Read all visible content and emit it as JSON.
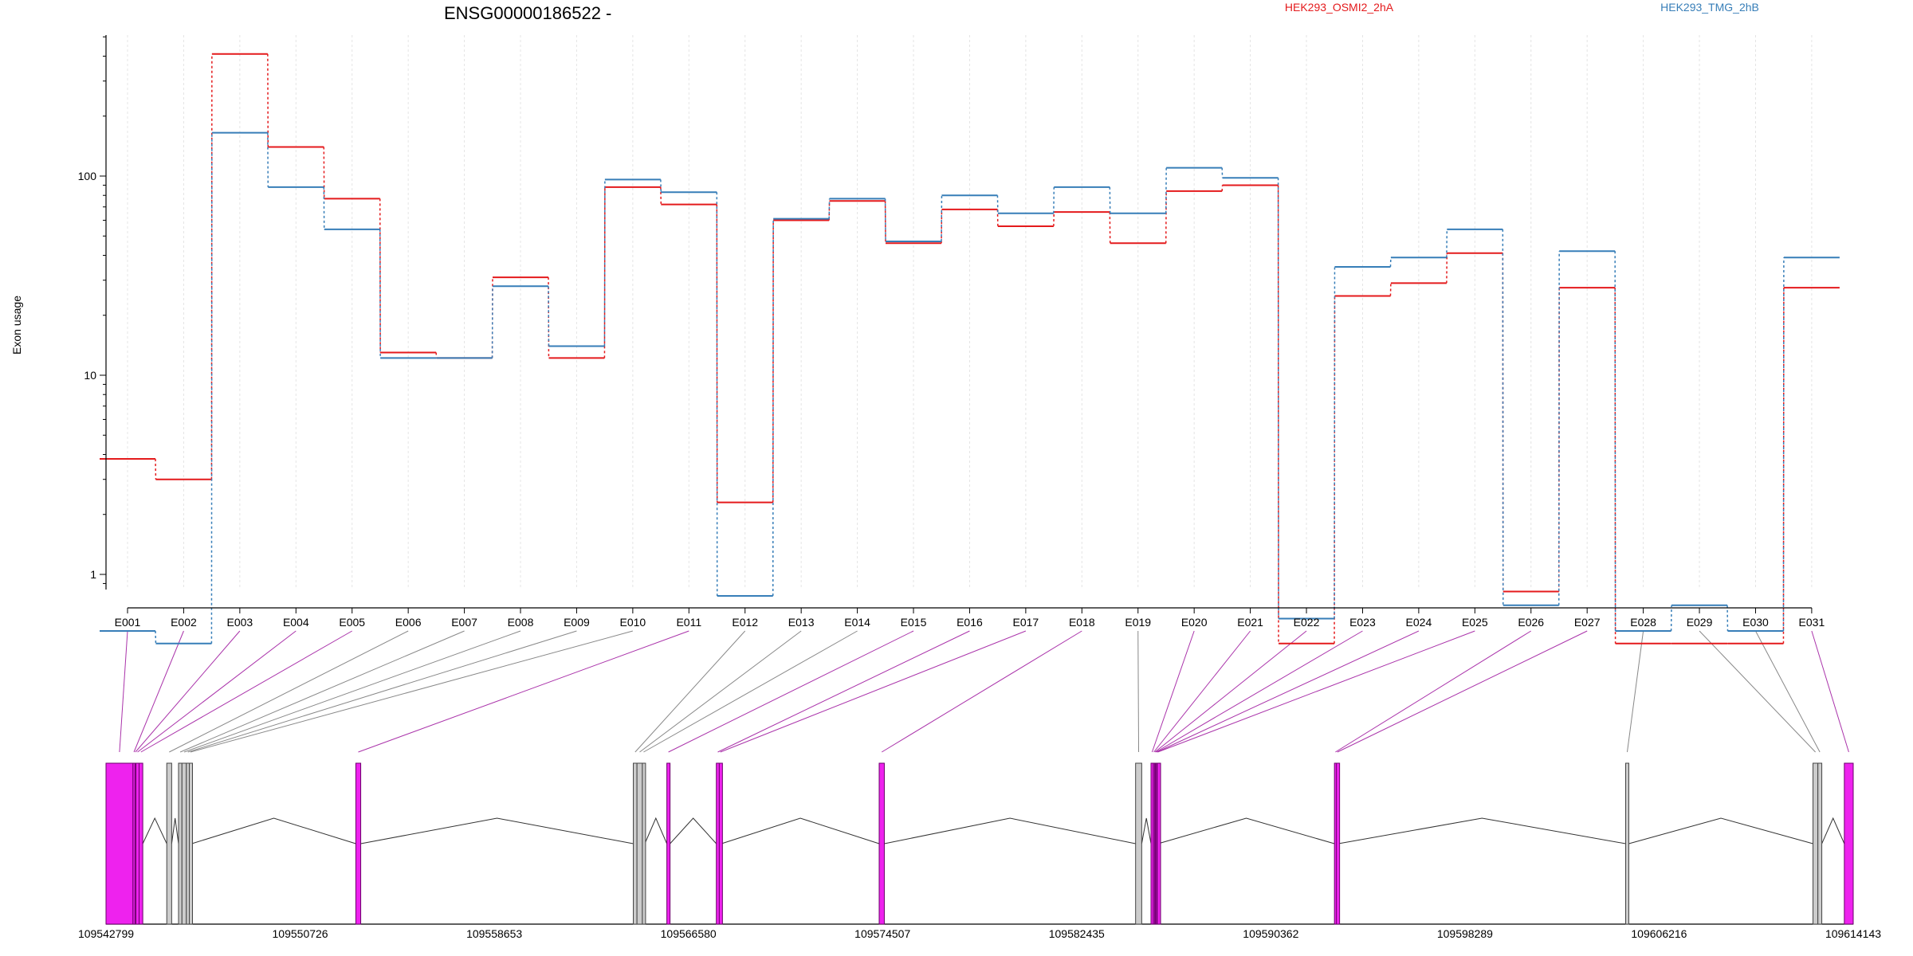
{
  "chart_data": {
    "type": "line",
    "title": "ENSG00000186522 -",
    "ylabel": "Exon usage",
    "xlabel": "",
    "yscale": "log",
    "ylim": [
      0.4,
      520
    ],
    "yticks": [
      1,
      10,
      100
    ],
    "ytick_labels": [
      "1",
      "10",
      "100"
    ],
    "grid": "vertical dotted",
    "legend_placement": "top-right",
    "categories": [
      "E001",
      "E002",
      "E003",
      "E004",
      "E005",
      "E006",
      "E007",
      "E008",
      "E009",
      "E010",
      "E011",
      "E012",
      "E013",
      "E014",
      "E015",
      "E016",
      "E017",
      "E018",
      "E019",
      "E020",
      "E021",
      "E022",
      "E023",
      "E024",
      "E025",
      "E026",
      "E027",
      "E028",
      "E029",
      "E030",
      "E031"
    ],
    "series": [
      {
        "name": "HEK293_OSMI2_2hA",
        "color": "#e41a1c",
        "values": [
          3.8,
          3.0,
          410,
          140,
          77,
          13,
          12.2,
          31,
          12.2,
          88,
          72,
          2.3,
          60,
          75,
          46,
          68,
          56,
          66,
          46,
          84,
          90,
          0.45,
          25,
          29,
          41,
          0.82,
          27.5,
          0.45,
          0.45,
          0.45,
          27.5
        ]
      },
      {
        "name": "HEK293_TMG_2hB",
        "color": "#377eb8",
        "values": [
          0.52,
          0.45,
          165,
          88,
          54,
          12.2,
          12.2,
          28,
          14,
          96,
          83,
          0.78,
          61,
          77,
          47,
          80,
          65,
          88,
          65,
          110,
          98,
          0.6,
          35,
          39,
          54,
          0.7,
          42,
          0.52,
          0.7,
          0.52,
          39
        ]
      }
    ],
    "gene_model": {
      "genomic_ticks": [
        "109542799",
        "109550726",
        "109558653",
        "109566580",
        "109574507",
        "109582435",
        "109590362",
        "109598289",
        "109606216",
        "109614143"
      ],
      "genomic_range": [
        109542799,
        109614143
      ],
      "exons": [
        {
          "id": "E001",
          "start": 109542799,
          "end": 109543900,
          "color": "#ee22ee"
        },
        {
          "id": "E002",
          "start": 109543900,
          "end": 109543980,
          "color": "#ee22ee"
        },
        {
          "id": "E003",
          "start": 109543980,
          "end": 109544020,
          "color": "#ee22ee"
        },
        {
          "id": "E004",
          "start": 109544020,
          "end": 109544150,
          "color": "#ee22ee"
        },
        {
          "id": "E005",
          "start": 109544150,
          "end": 109544300,
          "color": "#ee22ee"
        },
        {
          "id": "E006",
          "start": 109545280,
          "end": 109545480,
          "color": "#cccccc"
        },
        {
          "id": "E007",
          "start": 109545760,
          "end": 109545900,
          "color": "#cccccc"
        },
        {
          "id": "E008",
          "start": 109545900,
          "end": 109546080,
          "color": "#cccccc"
        },
        {
          "id": "E009",
          "start": 109546080,
          "end": 109546200,
          "color": "#cccccc"
        },
        {
          "id": "E010",
          "start": 109546200,
          "end": 109546300,
          "color": "#cccccc"
        },
        {
          "id": "E011",
          "start": 109553000,
          "end": 109553200,
          "color": "#ee22ee"
        },
        {
          "id": "E012",
          "start": 109564330,
          "end": 109564480,
          "color": "#cccccc"
        },
        {
          "id": "E013",
          "start": 109564480,
          "end": 109564700,
          "color": "#cccccc"
        },
        {
          "id": "E014",
          "start": 109564700,
          "end": 109564800,
          "color": "#cccccc"
        },
        {
          "id": "E015",
          "start": 109565700,
          "end": 109565830,
          "color": "#ee22ee"
        },
        {
          "id": "E016",
          "start": 109567720,
          "end": 109567840,
          "color": "#ee22ee"
        },
        {
          "id": "E017",
          "start": 109567840,
          "end": 109567930,
          "color": "#ee22ee"
        },
        {
          "id": "E018",
          "start": 109574370,
          "end": 109574580,
          "color": "#ee22ee"
        },
        {
          "id": "E019",
          "start": 109584840,
          "end": 109585090,
          "color": "#cccccc"
        },
        {
          "id": "E020",
          "start": 109585470,
          "end": 109585560,
          "color": "#ee22ee"
        },
        {
          "id": "E021",
          "start": 109585560,
          "end": 109585610,
          "color": "#ee22ee"
        },
        {
          "id": "E022",
          "start": 109585610,
          "end": 109585650,
          "color": "#ee22ee"
        },
        {
          "id": "E023",
          "start": 109585650,
          "end": 109585690,
          "color": "#ee22ee"
        },
        {
          "id": "E024",
          "start": 109585690,
          "end": 109585730,
          "color": "#ee22ee"
        },
        {
          "id": "E025",
          "start": 109585730,
          "end": 109585760,
          "color": "#ee22ee"
        },
        {
          "id": "E026",
          "start": 109592960,
          "end": 109593040,
          "color": "#ee22ee"
        },
        {
          "id": "E027",
          "start": 109593040,
          "end": 109593120,
          "color": "#ee22ee"
        },
        {
          "id": "E028",
          "start": 109604850,
          "end": 109604980,
          "color": "#cccccc"
        },
        {
          "id": "E029",
          "start": 109612500,
          "end": 109612700,
          "color": "#cccccc"
        },
        {
          "id": "E030",
          "start": 109612700,
          "end": 109612860,
          "color": "#cccccc"
        },
        {
          "id": "E031",
          "start": 109613780,
          "end": 109614143,
          "color": "#ee22ee"
        }
      ]
    }
  }
}
